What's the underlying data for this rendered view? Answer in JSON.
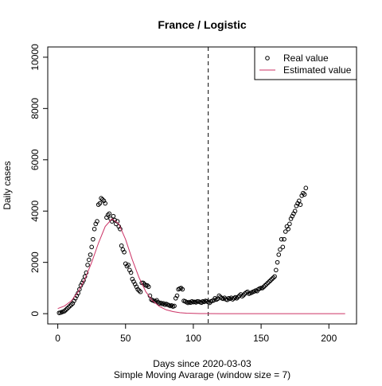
{
  "chart_data": {
    "type": "scatter-line",
    "title": "France / Logistic",
    "x_label": "Days since 2020-03-03",
    "subtitle": "Simple Moving Avarage (window size = 7)",
    "y_label": "Daily cases",
    "xlim": [
      -7.4,
      220.4
    ],
    "ylim": [
      -400,
      10400
    ],
    "xticks": [
      0,
      50,
      100,
      150,
      200
    ],
    "yticks": [
      0,
      2000,
      4000,
      6000,
      8000,
      10000
    ],
    "vline_x": 111,
    "legend": "topright",
    "series": [
      {
        "name": "Real value",
        "color": "#000000",
        "style": "points",
        "x": [
          1,
          2,
          3,
          4,
          5,
          6,
          7,
          8,
          9,
          10,
          11,
          12,
          13,
          14,
          15,
          16,
          17,
          18,
          19,
          20,
          21,
          22,
          23,
          24,
          25,
          26,
          27,
          28,
          29,
          30,
          31,
          32,
          33,
          34,
          35,
          36,
          37,
          38,
          39,
          40,
          41,
          42,
          43,
          44,
          45,
          46,
          47,
          48,
          49,
          50,
          51,
          52,
          53,
          54,
          55,
          56,
          57,
          58,
          59,
          60,
          61,
          62,
          63,
          64,
          65,
          66,
          67,
          68,
          69,
          70,
          71,
          72,
          73,
          74,
          75,
          76,
          77,
          78,
          79,
          80,
          81,
          82,
          83,
          84,
          85,
          86,
          87,
          88,
          89,
          90,
          91,
          92,
          93,
          94,
          95,
          96,
          97,
          98,
          99,
          100,
          101,
          102,
          103,
          104,
          105,
          106,
          107,
          108,
          109,
          110,
          111,
          112,
          113,
          114,
          115,
          116,
          117,
          118,
          119,
          120,
          121,
          122,
          123,
          124,
          125,
          126,
          127,
          128,
          129,
          130,
          131,
          132,
          133,
          134,
          135,
          136,
          137,
          138,
          139,
          140,
          141,
          142,
          143,
          144,
          145,
          146,
          147,
          148,
          149,
          150,
          151,
          152,
          153,
          154,
          155,
          156,
          157,
          158,
          159,
          160,
          161,
          162,
          163,
          164,
          165,
          166,
          167,
          168,
          169,
          170,
          171,
          172,
          173,
          174,
          175,
          176,
          177,
          178,
          179,
          180,
          181,
          182,
          183
        ],
        "values": [
          30,
          40,
          60,
          80,
          100,
          150,
          200,
          250,
          300,
          350,
          400,
          500,
          600,
          700,
          800,
          950,
          1100,
          1200,
          1300,
          1450,
          1600,
          1900,
          2100,
          2300,
          2600,
          2900,
          3300,
          3500,
          3600,
          4250,
          4300,
          4500,
          4450,
          4400,
          4300,
          3750,
          3850,
          3900,
          3700,
          3600,
          3800,
          3650,
          3500,
          3600,
          3400,
          3300,
          2650,
          2500,
          2400,
          1950,
          1850,
          1900,
          1700,
          1600,
          1350,
          1250,
          1150,
          1050,
          950,
          900,
          850,
          1200,
          1200,
          1150,
          1100,
          1100,
          1050,
          700,
          550,
          520,
          500,
          480,
          520,
          450,
          400,
          420,
          380,
          400,
          350,
          380,
          350,
          330,
          300,
          320,
          280,
          300,
          600,
          700,
          950,
          980,
          1000,
          950,
          500,
          480,
          450,
          420,
          450,
          430,
          480,
          450,
          460,
          440,
          480,
          470,
          450,
          430,
          480,
          460,
          500,
          480,
          450,
          420,
          480,
          500,
          520,
          600,
          550,
          580,
          700,
          650,
          600,
          580,
          620,
          560,
          540,
          600,
          580,
          620,
          560,
          600,
          640,
          600,
          650,
          700,
          750,
          680,
          720,
          780,
          820,
          850,
          780,
          800,
          820,
          850,
          870,
          900,
          880,
          950,
          980,
          1000,
          1000,
          1050,
          1100,
          1150,
          1200,
          1250,
          1300,
          1350,
          1400,
          1450,
          1700,
          2000,
          2300,
          2500,
          2900,
          2600,
          2900,
          3200,
          3400,
          3300,
          3500,
          3700,
          3800,
          3900,
          4000,
          4200,
          4300,
          4400,
          4250,
          4600,
          4700,
          4650,
          4900
        ]
      },
      {
        "name": "Estimated value",
        "color": "#cc3366",
        "style": "line",
        "x": [
          0,
          5,
          10,
          15,
          20,
          25,
          30,
          35,
          40,
          45,
          50,
          55,
          60,
          65,
          70,
          75,
          80,
          85,
          90,
          95,
          100,
          105,
          110,
          120,
          140,
          160,
          180,
          200,
          212
        ],
        "values": [
          200,
          300,
          500,
          850,
          1350,
          2000,
          2750,
          3400,
          3700,
          3500,
          2900,
          2100,
          1400,
          850,
          500,
          280,
          150,
          80,
          40,
          20,
          10,
          5,
          2,
          0,
          0,
          0,
          0,
          0,
          0
        ]
      }
    ]
  }
}
